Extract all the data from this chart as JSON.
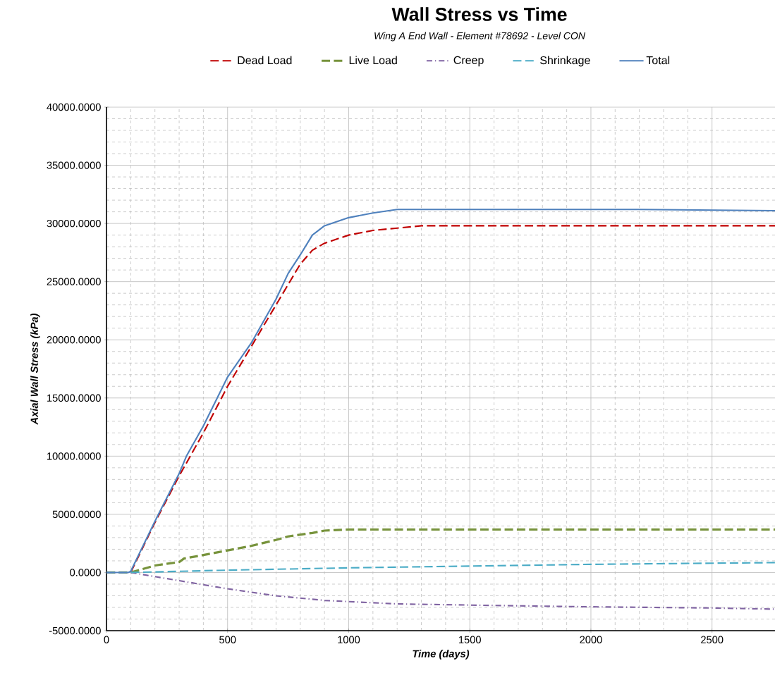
{
  "chart_data": {
    "type": "line",
    "title": "Wall Stress vs Time",
    "subtitle": "Wing A End Wall - Element #78692 - Level CON",
    "xlabel": "Time (days)",
    "ylabel": "Axial Wall Stress (kPa)",
    "xlim": [
      0,
      2760
    ],
    "xticks": [
      0,
      500,
      1000,
      1500,
      2000,
      2500
    ],
    "ylim": [
      -5000,
      40000
    ],
    "yticks": [
      {
        "value": -5000,
        "label": "-5000.0000"
      },
      {
        "value": 0,
        "label": "0.0000"
      },
      {
        "value": 5000,
        "label": "5000.0000"
      },
      {
        "value": 10000,
        "label": "10000.0000"
      },
      {
        "value": 15000,
        "label": "15000.0000"
      },
      {
        "value": 20000,
        "label": "20000.0000"
      },
      {
        "value": 25000,
        "label": "25000.0000"
      },
      {
        "value": 30000,
        "label": "30000.0000"
      },
      {
        "value": 35000,
        "label": "35000.0000"
      },
      {
        "value": 40000,
        "label": "40000.0000"
      }
    ],
    "grid": true,
    "legend": "top",
    "series": [
      {
        "name": "Dead Load",
        "color": "#c00000",
        "line_style": "dashed",
        "x": [
          0,
          90,
          100,
          200,
          300,
          400,
          500,
          600,
          700,
          800,
          850,
          900,
          1000,
          1100,
          1200,
          1300,
          2760
        ],
        "values": [
          0,
          0,
          0,
          4300,
          8300,
          12000,
          16000,
          19500,
          23000,
          26500,
          27700,
          28300,
          29000,
          29400,
          29600,
          29800,
          29800
        ]
      },
      {
        "name": "Live Load",
        "color": "#77933c",
        "line_style": "dashed",
        "x": [
          0,
          100,
          150,
          200,
          300,
          320,
          400,
          500,
          600,
          700,
          750,
          850,
          900,
          1000,
          2760
        ],
        "values": [
          0,
          0,
          300,
          600,
          900,
          1200,
          1500,
          1900,
          2300,
          2800,
          3100,
          3400,
          3600,
          3700,
          3700
        ]
      },
      {
        "name": "Creep",
        "color": "#8064a2",
        "line_style": "dashdot",
        "x": [
          0,
          100,
          300,
          500,
          700,
          900,
          1200,
          1500,
          2000,
          2500,
          2760
        ],
        "values": [
          0,
          0,
          -700,
          -1400,
          -2000,
          -2400,
          -2700,
          -2800,
          -2950,
          -3050,
          -3150
        ]
      },
      {
        "name": "Shrinkage",
        "color": "#4bacc6",
        "line_style": "dashed",
        "x": [
          0,
          100,
          500,
          1000,
          1500,
          2000,
          2500,
          2760
        ],
        "values": [
          0,
          0,
          200,
          400,
          550,
          700,
          800,
          850
        ]
      },
      {
        "name": "Total",
        "color": "#4f81bd",
        "line_style": "solid",
        "x": [
          0,
          90,
          100,
          200,
          300,
          330,
          400,
          500,
          600,
          700,
          750,
          800,
          850,
          900,
          1000,
          1100,
          1200,
          2200,
          2760
        ],
        "values": [
          0,
          0,
          100,
          4400,
          8500,
          10000,
          12600,
          16800,
          19800,
          23500,
          25700,
          27300,
          29000,
          29800,
          30500,
          30900,
          31200,
          31200,
          31100
        ]
      }
    ]
  }
}
